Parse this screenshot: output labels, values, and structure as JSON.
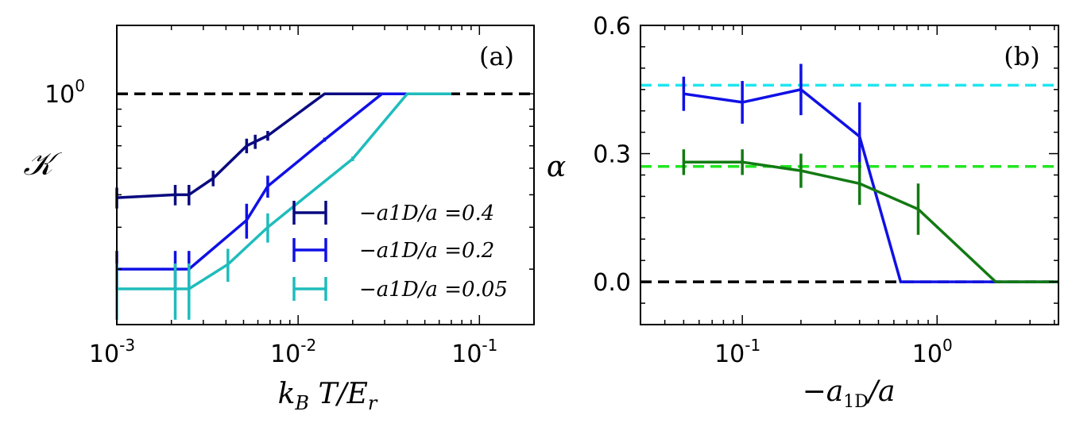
{
  "chart_data": [
    {
      "panel": "(a)",
      "type": "line",
      "xscale": "log",
      "yscale": "log",
      "xlim": [
        0.001,
        0.2
      ],
      "ylim": [
        0.205,
        1.6
      ],
      "xlabel": "k_B T/E_r",
      "ylabel": "𝒦",
      "xticks": [
        {
          "value": 0.001,
          "base": "10",
          "exp": "-3"
        },
        {
          "value": 0.01,
          "base": "10",
          "exp": "-2"
        },
        {
          "value": 0.1,
          "base": "10",
          "exp": "-1"
        }
      ],
      "yticks": [
        {
          "value": 1.0,
          "base": "10",
          "exp": "0"
        }
      ],
      "reference_lines": [
        {
          "y": 1.0,
          "color": "#000000",
          "style": "dashed"
        }
      ],
      "legend_position": "lower-right",
      "series": [
        {
          "name": "−a_1D/a = 0.4",
          "legend_label": "−a1D/a =0.4",
          "color": "#0a0a80",
          "points": [
            {
              "x": 0.001,
              "y": 0.49,
              "err": 0.035
            },
            {
              "x": 0.0021,
              "y": 0.5,
              "err": 0.035
            },
            {
              "x": 0.0025,
              "y": 0.5,
              "err": 0.035
            },
            {
              "x": 0.0034,
              "y": 0.56,
              "err": 0.03
            },
            {
              "x": 0.0052,
              "y": 0.7,
              "err": 0.035
            },
            {
              "x": 0.0058,
              "y": 0.72,
              "err": 0.035
            },
            {
              "x": 0.0068,
              "y": 0.75,
              "err": 0.025
            },
            {
              "x": 0.014,
              "y": 1.0,
              "err": 0
            },
            {
              "x": 0.04,
              "y": 1.0,
              "err": 0
            }
          ]
        },
        {
          "name": "−a_1D/a = 0.2",
          "legend_label": "−a1D/a =0.2",
          "color": "#1010e6",
          "points": [
            {
              "x": 0.001,
              "y": 0.3,
              "err": 0.04
            },
            {
              "x": 0.0021,
              "y": 0.3,
              "err": 0.04
            },
            {
              "x": 0.0025,
              "y": 0.3,
              "err": 0.04
            },
            {
              "x": 0.0052,
              "y": 0.42,
              "err": 0.05
            },
            {
              "x": 0.0068,
              "y": 0.53,
              "err": 0.04
            },
            {
              "x": 0.014,
              "y": 0.73,
              "err": 0.01
            },
            {
              "x": 0.029,
              "y": 1.0,
              "err": 0
            },
            {
              "x": 0.04,
              "y": 1.0,
              "err": 0
            }
          ]
        },
        {
          "name": "−a_1D/a = 0.05",
          "legend_label": "−a1D/a =0.05",
          "color": "#1fbcbc",
          "points": [
            {
              "x": 0.001,
              "y": 0.262,
              "err": 0.05
            },
            {
              "x": 0.0021,
              "y": 0.262,
              "err": 0.05
            },
            {
              "x": 0.0025,
              "y": 0.262,
              "err": 0.05
            },
            {
              "x": 0.0041,
              "y": 0.31,
              "err": 0.035
            },
            {
              "x": 0.0068,
              "y": 0.4,
              "err": 0.04
            },
            {
              "x": 0.02,
              "y": 0.64,
              "err": 0.01
            },
            {
              "x": 0.04,
              "y": 1.0,
              "err": 0
            },
            {
              "x": 0.07,
              "y": 1.0,
              "err": 0
            }
          ]
        }
      ]
    },
    {
      "panel": "(b)",
      "type": "line",
      "xscale": "log",
      "yscale": "linear",
      "xlim": [
        0.03,
        4.2
      ],
      "ylim": [
        -0.1,
        0.6
      ],
      "xlabel": "−a_1D/a",
      "ylabel": "α",
      "xticks": [
        {
          "value": 0.1,
          "base": "10",
          "exp": "-1"
        },
        {
          "value": 1.0,
          "base": "10",
          "exp": "0"
        }
      ],
      "yticks": [
        {
          "value": 0.0,
          "label": "0.0"
        },
        {
          "value": 0.3,
          "label": "0.3"
        },
        {
          "value": 0.6,
          "label": "0.6"
        }
      ],
      "reference_lines": [
        {
          "y": 0.46,
          "color": "#1ee6f0",
          "style": "dashed"
        },
        {
          "y": 0.27,
          "color": "#22e622",
          "style": "dashed"
        },
        {
          "y": 0.0,
          "color": "#000000",
          "style": "dashed"
        }
      ],
      "series": [
        {
          "name": "blue",
          "color": "#1010e6",
          "points": [
            {
              "x": 0.05,
              "y": 0.44,
              "err": 0.04
            },
            {
              "x": 0.1,
              "y": 0.42,
              "err": 0.05
            },
            {
              "x": 0.2,
              "y": 0.45,
              "err": 0.06
            },
            {
              "x": 0.4,
              "y": 0.34,
              "err": 0.08
            },
            {
              "x": 0.65,
              "y": 0.0,
              "err": 0
            },
            {
              "x": 4.2,
              "y": 0.0,
              "err": 0
            }
          ]
        },
        {
          "name": "green",
          "color": "#137a13",
          "points": [
            {
              "x": 0.05,
              "y": 0.28,
              "err": 0.03
            },
            {
              "x": 0.1,
              "y": 0.28,
              "err": 0.03
            },
            {
              "x": 0.2,
              "y": 0.26,
              "err": 0.04
            },
            {
              "x": 0.4,
              "y": 0.23,
              "err": 0.05
            },
            {
              "x": 0.8,
              "y": 0.17,
              "err": 0.06
            },
            {
              "x": 2.0,
              "y": 0.0,
              "err": 0
            },
            {
              "x": 4.2,
              "y": 0.0,
              "err": 0
            }
          ]
        }
      ]
    }
  ],
  "labels": {
    "panel_a": "(a)",
    "panel_b": "(b)"
  }
}
